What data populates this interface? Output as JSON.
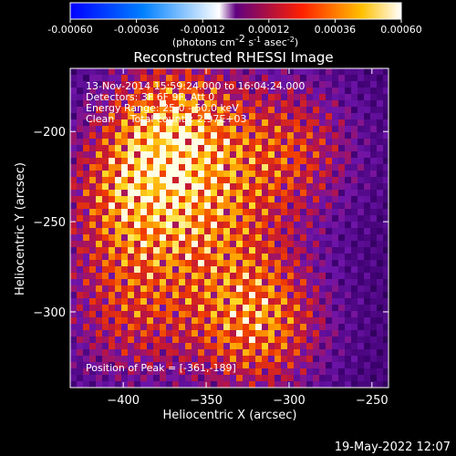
{
  "colorbar": {
    "ticks": [
      "-0.00060",
      "-0.00036",
      "-0.00012",
      "0.00012",
      "0.00036",
      "0.00060"
    ],
    "tick_values": [
      -0.0006,
      -0.00036,
      -0.00012,
      0.00012,
      0.00036,
      0.0006
    ],
    "range": [
      -0.0006,
      0.0006
    ],
    "unit_main": "(photons cm",
    "unit_exp1": "-2",
    "unit_mid": " s",
    "unit_exp2": "-1",
    "unit_mid2": " asec",
    "unit_exp3": "-2",
    "unit_close": ")",
    "colors": [
      "#0000ff",
      "#0070ff",
      "#ffffff",
      "#8000a0",
      "#ff4000",
      "#ffd000",
      "#ffffff"
    ]
  },
  "chart_data": {
    "type": "heatmap",
    "title": "Reconstructed RHESSI Image",
    "xlabel": "Heliocentric X (arcsec)",
    "ylabel": "Heliocentric Y (arcsec)",
    "xlim": [
      -432,
      -240
    ],
    "ylim": [
      -342,
      -165
    ],
    "x_ticks": [
      -400,
      -350,
      -300,
      -250
    ],
    "y_ticks": [
      -200,
      -250,
      -300
    ],
    "x_tick_labels": [
      "−400",
      "−350",
      "−300",
      "−250"
    ],
    "y_tick_labels": [
      "−200",
      "−250",
      "−300"
    ],
    "peak": [
      -361,
      -189
    ],
    "annotations": [
      "13-Nov-2014 15:59:24.000 to 16:04:24.000",
      "Detectors: 3F 6F 9F, Att 0",
      "Energy Range: 25.0 - 50.0 keV",
      "Clean     Total counts: 2.97E+03"
    ],
    "peak_label": "Position of Peak = [-361,-189]",
    "sources": [
      {
        "x": -370,
        "y": -200,
        "amp": 1.0
      },
      {
        "x": -395,
        "y": -240,
        "amp": 0.75
      },
      {
        "x": -320,
        "y": -305,
        "amp": 0.9
      },
      {
        "x": -300,
        "y": -210,
        "amp": 0.6
      },
      {
        "x": -395,
        "y": -300,
        "amp": 0.55
      },
      {
        "x": -345,
        "y": -250,
        "amp": 0.5
      }
    ]
  },
  "footer": {
    "timestamp": "19-May-2022 12:07"
  }
}
